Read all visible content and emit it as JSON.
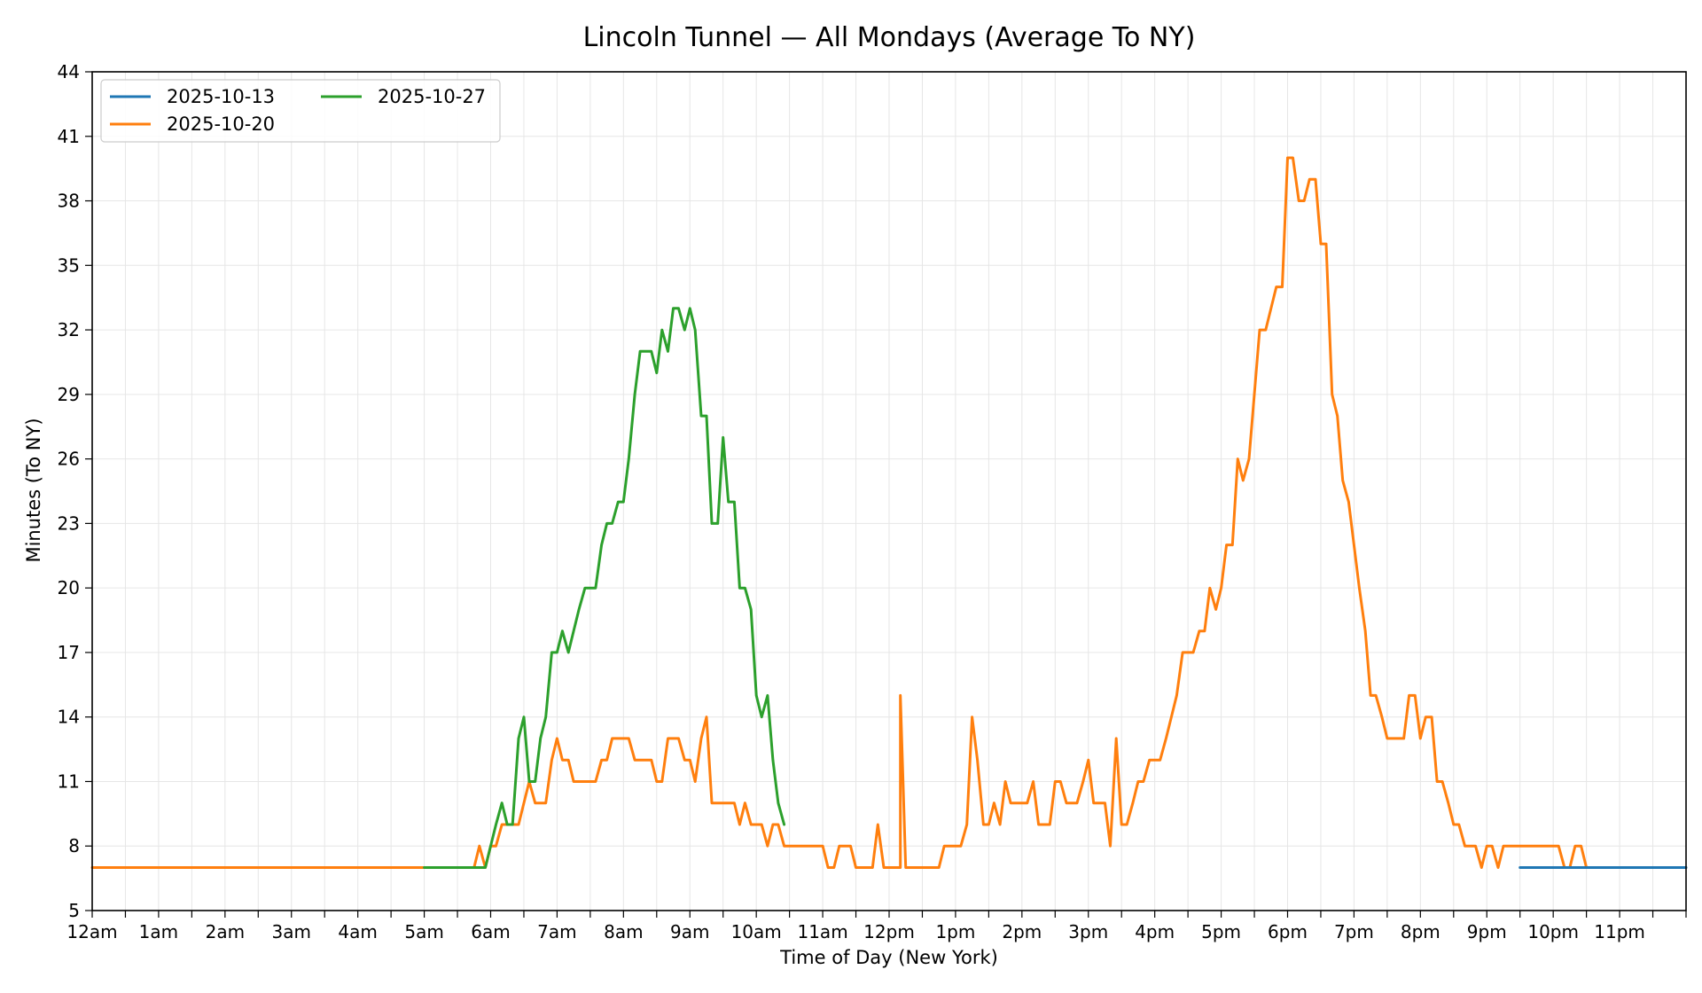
{
  "chart_data": {
    "type": "line",
    "title": "Lincoln Tunnel — All Mondays (Average To NY)",
    "xlabel": "Time of Day (New York)",
    "ylabel": "Minutes (To NY)",
    "x_unit": "hour of day",
    "xlim": [
      0,
      24
    ],
    "ylim": [
      5,
      44
    ],
    "y_ticks": [
      5,
      8,
      11,
      14,
      17,
      20,
      23,
      26,
      29,
      32,
      35,
      38,
      41,
      44
    ],
    "x_ticks": [
      0,
      1,
      2,
      3,
      4,
      5,
      6,
      7,
      8,
      9,
      10,
      11,
      12,
      13,
      14,
      15,
      16,
      17,
      18,
      19,
      20,
      21,
      22,
      23
    ],
    "x_tick_labels": [
      "12am",
      "1am",
      "2am",
      "3am",
      "4am",
      "5am",
      "6am",
      "7am",
      "8am",
      "9am",
      "10am",
      "11am",
      "12pm",
      "1pm",
      "2pm",
      "3pm",
      "4pm",
      "5pm",
      "6pm",
      "7pm",
      "8pm",
      "9pm",
      "10pm",
      "11pm"
    ],
    "grid": true,
    "legend_position": "top-left",
    "series": [
      {
        "name": "2025-10-13",
        "color": "#1f77b4",
        "points": [
          [
            21.5,
            7
          ],
          [
            24,
            7
          ]
        ]
      },
      {
        "name": "2025-10-20",
        "color": "#ff7f0e",
        "points": [
          [
            0,
            7
          ],
          [
            5.75,
            7
          ],
          [
            5.83,
            8
          ],
          [
            5.92,
            7
          ],
          [
            6.0,
            8
          ],
          [
            6.08,
            8
          ],
          [
            6.17,
            9
          ],
          [
            6.25,
            9
          ],
          [
            6.33,
            9
          ],
          [
            6.42,
            9
          ],
          [
            6.5,
            10
          ],
          [
            6.58,
            11
          ],
          [
            6.67,
            10
          ],
          [
            6.75,
            10
          ],
          [
            6.83,
            10
          ],
          [
            6.92,
            12
          ],
          [
            7.0,
            13
          ],
          [
            7.08,
            12
          ],
          [
            7.17,
            12
          ],
          [
            7.25,
            11
          ],
          [
            7.33,
            11
          ],
          [
            7.42,
            11
          ],
          [
            7.5,
            11
          ],
          [
            7.58,
            11
          ],
          [
            7.67,
            12
          ],
          [
            7.75,
            12
          ],
          [
            7.83,
            13
          ],
          [
            7.92,
            13
          ],
          [
            8.0,
            13
          ],
          [
            8.08,
            13
          ],
          [
            8.17,
            12
          ],
          [
            8.25,
            12
          ],
          [
            8.33,
            12
          ],
          [
            8.42,
            12
          ],
          [
            8.5,
            11
          ],
          [
            8.58,
            11
          ],
          [
            8.67,
            13
          ],
          [
            8.75,
            13
          ],
          [
            8.83,
            13
          ],
          [
            8.92,
            12
          ],
          [
            9.0,
            12
          ],
          [
            9.08,
            11
          ],
          [
            9.17,
            13
          ],
          [
            9.25,
            14
          ],
          [
            9.33,
            10
          ],
          [
            9.42,
            10
          ],
          [
            9.5,
            10
          ],
          [
            9.58,
            10
          ],
          [
            9.67,
            10
          ],
          [
            9.75,
            9
          ],
          [
            9.83,
            10
          ],
          [
            9.92,
            9
          ],
          [
            10.0,
            9
          ],
          [
            10.08,
            9
          ],
          [
            10.17,
            8
          ],
          [
            10.25,
            9
          ],
          [
            10.33,
            9
          ],
          [
            10.42,
            8
          ],
          [
            10.5,
            8
          ],
          [
            10.67,
            8
          ],
          [
            10.83,
            8
          ],
          [
            11.0,
            8
          ],
          [
            11.08,
            7
          ],
          [
            11.17,
            7
          ],
          [
            11.25,
            8
          ],
          [
            11.33,
            8
          ],
          [
            11.42,
            8
          ],
          [
            11.5,
            7
          ],
          [
            11.58,
            7
          ],
          [
            11.67,
            7
          ],
          [
            11.75,
            7
          ],
          [
            11.83,
            9
          ],
          [
            11.92,
            7
          ],
          [
            12.0,
            7
          ],
          [
            12.08,
            7
          ],
          [
            12.17,
            7
          ],
          [
            12.17,
            15
          ],
          [
            12.25,
            7
          ],
          [
            12.33,
            7
          ],
          [
            12.5,
            7
          ],
          [
            12.67,
            7
          ],
          [
            12.75,
            7
          ],
          [
            12.83,
            8
          ],
          [
            12.92,
            8
          ],
          [
            13.0,
            8
          ],
          [
            13.08,
            8
          ],
          [
            13.17,
            9
          ],
          [
            13.25,
            14
          ],
          [
            13.33,
            12
          ],
          [
            13.42,
            9
          ],
          [
            13.5,
            9
          ],
          [
            13.58,
            10
          ],
          [
            13.67,
            9
          ],
          [
            13.75,
            11
          ],
          [
            13.83,
            10
          ],
          [
            13.92,
            10
          ],
          [
            14.0,
            10
          ],
          [
            14.08,
            10
          ],
          [
            14.17,
            11
          ],
          [
            14.25,
            9
          ],
          [
            14.33,
            9
          ],
          [
            14.42,
            9
          ],
          [
            14.5,
            11
          ],
          [
            14.58,
            11
          ],
          [
            14.67,
            10
          ],
          [
            14.75,
            10
          ],
          [
            14.83,
            10
          ],
          [
            14.92,
            11
          ],
          [
            15.0,
            12
          ],
          [
            15.08,
            10
          ],
          [
            15.17,
            10
          ],
          [
            15.25,
            10
          ],
          [
            15.33,
            8
          ],
          [
            15.42,
            13
          ],
          [
            15.5,
            9
          ],
          [
            15.58,
            9
          ],
          [
            15.67,
            10
          ],
          [
            15.75,
            11
          ],
          [
            15.83,
            11
          ],
          [
            15.92,
            12
          ],
          [
            16.0,
            12
          ],
          [
            16.08,
            12
          ],
          [
            16.17,
            13
          ],
          [
            16.25,
            14
          ],
          [
            16.33,
            15
          ],
          [
            16.42,
            17
          ],
          [
            16.5,
            17
          ],
          [
            16.58,
            17
          ],
          [
            16.67,
            18
          ],
          [
            16.75,
            18
          ],
          [
            16.83,
            20
          ],
          [
            16.92,
            19
          ],
          [
            17.0,
            20
          ],
          [
            17.08,
            22
          ],
          [
            17.17,
            22
          ],
          [
            17.25,
            26
          ],
          [
            17.33,
            25
          ],
          [
            17.42,
            26
          ],
          [
            17.5,
            29
          ],
          [
            17.58,
            32
          ],
          [
            17.67,
            32
          ],
          [
            17.75,
            33
          ],
          [
            17.83,
            34
          ],
          [
            17.92,
            34
          ],
          [
            18.0,
            40
          ],
          [
            18.08,
            40
          ],
          [
            18.17,
            38
          ],
          [
            18.25,
            38
          ],
          [
            18.33,
            39
          ],
          [
            18.42,
            39
          ],
          [
            18.5,
            36
          ],
          [
            18.58,
            36
          ],
          [
            18.67,
            29
          ],
          [
            18.75,
            28
          ],
          [
            18.83,
            25
          ],
          [
            18.92,
            24
          ],
          [
            19.0,
            22
          ],
          [
            19.08,
            20
          ],
          [
            19.17,
            18
          ],
          [
            19.25,
            15
          ],
          [
            19.33,
            15
          ],
          [
            19.42,
            14
          ],
          [
            19.5,
            13
          ],
          [
            19.58,
            13
          ],
          [
            19.67,
            13
          ],
          [
            19.75,
            13
          ],
          [
            19.83,
            15
          ],
          [
            19.92,
            15
          ],
          [
            20.0,
            13
          ],
          [
            20.08,
            14
          ],
          [
            20.17,
            14
          ],
          [
            20.25,
            11
          ],
          [
            20.33,
            11
          ],
          [
            20.42,
            10
          ],
          [
            20.5,
            9
          ],
          [
            20.58,
            9
          ],
          [
            20.67,
            8
          ],
          [
            20.75,
            8
          ],
          [
            20.83,
            8
          ],
          [
            20.92,
            7
          ],
          [
            21.0,
            8
          ],
          [
            21.08,
            8
          ],
          [
            21.17,
            7
          ],
          [
            21.25,
            8
          ],
          [
            21.33,
            8
          ],
          [
            21.5,
            8
          ],
          [
            21.67,
            8
          ],
          [
            21.83,
            8
          ],
          [
            22.0,
            8
          ],
          [
            22.08,
            8
          ],
          [
            22.17,
            7
          ],
          [
            22.25,
            7
          ],
          [
            22.33,
            8
          ],
          [
            22.42,
            8
          ],
          [
            22.5,
            7
          ],
          [
            22.58,
            7
          ],
          [
            22.67,
            7
          ],
          [
            24,
            7
          ]
        ]
      },
      {
        "name": "2025-10-27",
        "color": "#2ca02c",
        "points": [
          [
            5.0,
            7
          ],
          [
            5.5,
            7
          ],
          [
            5.92,
            7
          ],
          [
            6.0,
            8
          ],
          [
            6.08,
            9
          ],
          [
            6.17,
            10
          ],
          [
            6.25,
            9
          ],
          [
            6.33,
            9
          ],
          [
            6.42,
            13
          ],
          [
            6.5,
            14
          ],
          [
            6.58,
            11
          ],
          [
            6.67,
            11
          ],
          [
            6.75,
            13
          ],
          [
            6.83,
            14
          ],
          [
            6.92,
            17
          ],
          [
            7.0,
            17
          ],
          [
            7.08,
            18
          ],
          [
            7.17,
            17
          ],
          [
            7.25,
            18
          ],
          [
            7.33,
            19
          ],
          [
            7.42,
            20
          ],
          [
            7.5,
            20
          ],
          [
            7.58,
            20
          ],
          [
            7.67,
            22
          ],
          [
            7.75,
            23
          ],
          [
            7.83,
            23
          ],
          [
            7.92,
            24
          ],
          [
            8.0,
            24
          ],
          [
            8.08,
            26
          ],
          [
            8.17,
            29
          ],
          [
            8.25,
            31
          ],
          [
            8.33,
            31
          ],
          [
            8.42,
            31
          ],
          [
            8.5,
            30
          ],
          [
            8.58,
            32
          ],
          [
            8.67,
            31
          ],
          [
            8.75,
            33
          ],
          [
            8.83,
            33
          ],
          [
            8.92,
            32
          ],
          [
            9.0,
            33
          ],
          [
            9.08,
            32
          ],
          [
            9.17,
            28
          ],
          [
            9.25,
            28
          ],
          [
            9.33,
            23
          ],
          [
            9.42,
            23
          ],
          [
            9.5,
            27
          ],
          [
            9.58,
            24
          ],
          [
            9.67,
            24
          ],
          [
            9.75,
            20
          ],
          [
            9.83,
            20
          ],
          [
            9.92,
            19
          ],
          [
            10.0,
            15
          ],
          [
            10.08,
            14
          ],
          [
            10.17,
            15
          ],
          [
            10.25,
            12
          ],
          [
            10.33,
            10
          ],
          [
            10.42,
            9
          ]
        ]
      }
    ]
  }
}
